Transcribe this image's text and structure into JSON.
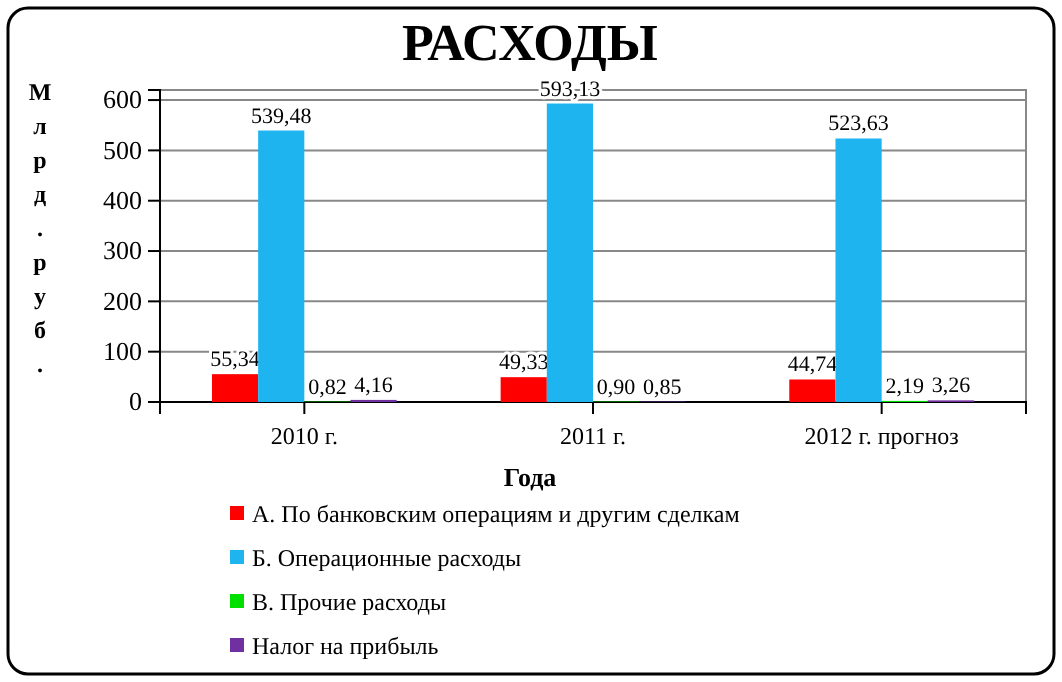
{
  "chart_data": {
    "type": "bar",
    "title": "РАСХОДЫ",
    "xlabel": "Года",
    "ylabel": "Млрд.руб.",
    "categories": [
      "2010 г.",
      "2011 г.",
      "2012 г. прогноз"
    ],
    "series": [
      {
        "name": "А. По банковским операциям и другим сделкам",
        "color": "#ff0000",
        "values": [
          55.34,
          49.33,
          44.74
        ],
        "value_labels": [
          "55,34",
          "49,33",
          "44,74"
        ]
      },
      {
        "name": "Б. Операционные расходы",
        "color": "#1eb4f0",
        "values": [
          539.48,
          593.13,
          523.63
        ],
        "value_labels": [
          "539,48",
          "593,13",
          "523,63"
        ]
      },
      {
        "name": "В. Прочие расходы",
        "color": "#00e000",
        "values": [
          0.82,
          0.9,
          2.19
        ],
        "value_labels": [
          "0,82",
          "0,90",
          "2,19"
        ]
      },
      {
        "name": "Налог на прибыль",
        "color": "#7030a0",
        "values": [
          4.16,
          0.85,
          3.26
        ],
        "value_labels": [
          "4,16",
          "0,85",
          "3,26"
        ]
      }
    ],
    "ylim": [
      0,
      620
    ],
    "yticks": [
      0,
      100,
      200,
      300,
      400,
      500,
      600
    ],
    "grid": "y",
    "legend": "bottom"
  }
}
